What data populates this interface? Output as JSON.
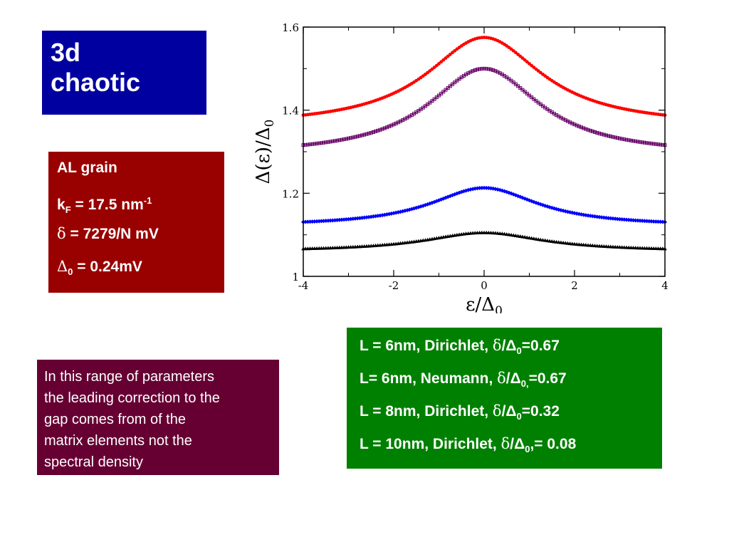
{
  "title": {
    "line1": "3d",
    "line2": "chaotic",
    "bg": "#0000a0"
  },
  "params": {
    "bg": "#990000",
    "lines": [
      {
        "main": "AL grain"
      },
      {
        "k": "k",
        "k_sub": "F",
        "rest": " = 17.5 nm",
        "sup": "-1"
      },
      {
        "sym": "δ",
        "rest": " = 7279/N mV"
      },
      {
        "sym": "Δ",
        "sub": "0",
        "rest": " = 0.24mV"
      }
    ]
  },
  "note": {
    "bg": "#660033",
    "lines": [
      "In this range of parameters",
      "the leading correction to the",
      "gap comes from of the",
      "matrix elements not the",
      "spectral density"
    ]
  },
  "legend": {
    "bg": "#008000",
    "entries": [
      {
        "pre": "L = 6nm, Dirichlet, ",
        "d": "δ",
        "slash": "/",
        "D": "Δ",
        "sub": "0",
        "post": "=0.67"
      },
      {
        "pre": "L= 6nm, Neumann, ",
        "d": "δ",
        "slash": "/",
        "D": "Δ",
        "sub": "0,",
        "post": "=0.67"
      },
      {
        "pre": "L = 8nm,  Dirichlet, ",
        "d": "δ",
        "slash": "/",
        "D": "Δ",
        "sub": "0",
        "post": "=0.32"
      },
      {
        "pre": "L = 10nm, Dirichlet, ",
        "d": "δ",
        "slash": "/",
        "D": "Δ",
        "sub": "0",
        "post": ",= 0.08"
      }
    ]
  },
  "chart_data": {
    "type": "line",
    "xlabel": "ε/Δ",
    "xlabel_sub": "0",
    "ylabel": "Δ(ε)/Δ",
    "ylabel_sub": "0",
    "xlim": [
      -4,
      4
    ],
    "ylim": [
      1,
      1.6
    ],
    "xticks": [
      "-4",
      "-2",
      "0",
      "2",
      "4"
    ],
    "yticks": [
      "1",
      "1.2",
      "1.4",
      "1.6"
    ],
    "grid": false,
    "series": [
      {
        "color": "#ff0000",
        "marker": "circle",
        "peak": 1.575,
        "edge": 1.36,
        "width": 1.55
      },
      {
        "color": "#660066",
        "marker": "square",
        "peak": 1.5,
        "edge": 1.29,
        "width": 1.5
      },
      {
        "color": "#0000ff",
        "marker": "diamond",
        "peak": 1.213,
        "edge": 1.12,
        "width": 1.45
      },
      {
        "color": "#000000",
        "marker": "triangle",
        "peak": 1.105,
        "edge": 1.06,
        "width": 1.6
      }
    ]
  }
}
